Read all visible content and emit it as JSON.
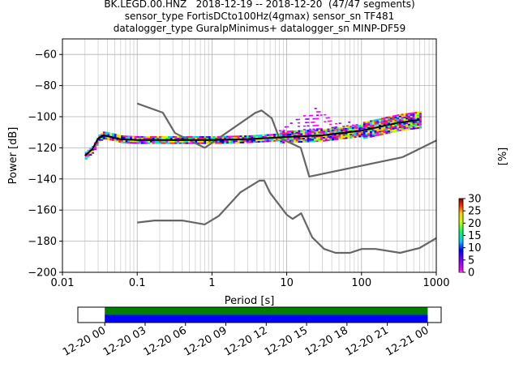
{
  "title_lines": [
    "BK.LEGD.00.HNZ   2018-12-19 -- 2018-12-20  (47/47 segments)",
    "sensor_type FortisDCto100Hz(4gmax) sensor_sn TF481",
    "datalogger_type GuralpMinimus+ datalogger_sn MINP-DF59"
  ],
  "chart_data": {
    "type": "line",
    "xlabel": "Period [s]",
    "ylabel": "Power [dB]",
    "x_scale": "log",
    "xlim": [
      0.01,
      1000
    ],
    "ylim": [
      -200,
      -50
    ],
    "x_ticks": [
      0.01,
      0.1,
      1,
      10,
      100,
      1000
    ],
    "x_tick_labels": [
      "0.01",
      "0.1",
      "1",
      "10",
      "100",
      "1000"
    ],
    "y_ticks": [
      -200,
      -180,
      -160,
      -140,
      -120,
      -100,
      -80,
      -60
    ],
    "y_tick_labels": [
      "−200",
      "−180",
      "−160",
      "−140",
      "−120",
      "−100",
      "−80",
      "−60"
    ],
    "grid": true,
    "series": [
      {
        "role": "noise-model-high",
        "color": "#666666",
        "points": [
          [
            0.1,
            -91.5
          ],
          [
            0.22,
            -97.4
          ],
          [
            0.32,
            -110.5
          ],
          [
            0.8,
            -120
          ],
          [
            3.8,
            -97.5
          ],
          [
            4.6,
            -96
          ],
          [
            6.3,
            -101
          ],
          [
            7.9,
            -113.5
          ],
          [
            15.4,
            -120
          ],
          [
            20,
            -138.5
          ],
          [
            354.8,
            -126
          ],
          [
            10000,
            -91.5
          ]
        ]
      },
      {
        "role": "noise-model-low",
        "color": "#666666",
        "points": [
          [
            0.1,
            -168
          ],
          [
            0.17,
            -166.7
          ],
          [
            0.4,
            -166.7
          ],
          [
            0.8,
            -169.2
          ],
          [
            1.24,
            -163.7
          ],
          [
            2.4,
            -148.6
          ],
          [
            4.3,
            -141.1
          ],
          [
            5,
            -141.1
          ],
          [
            6,
            -149
          ],
          [
            10,
            -163
          ],
          [
            12,
            -165.7
          ],
          [
            15.6,
            -162.1
          ],
          [
            21.9,
            -177.5
          ],
          [
            31.6,
            -185
          ],
          [
            45,
            -187.5
          ],
          [
            70,
            -187.5
          ],
          [
            101,
            -185
          ],
          [
            154,
            -185
          ],
          [
            328,
            -187.5
          ],
          [
            600,
            -184.4
          ],
          [
            1000,
            -178
          ]
        ]
      },
      {
        "role": "mode-psd",
        "color": "#000000",
        "points": [
          [
            0.02,
            -125
          ],
          [
            0.025,
            -121
          ],
          [
            0.03,
            -114
          ],
          [
            0.035,
            -112
          ],
          [
            0.045,
            -113
          ],
          [
            0.06,
            -114.5
          ],
          [
            0.1,
            -115
          ],
          [
            0.3,
            -115
          ],
          [
            1,
            -115
          ],
          [
            3,
            -114.5
          ],
          [
            10,
            -113
          ],
          [
            30,
            -112
          ],
          [
            100,
            -109
          ],
          [
            300,
            -104
          ],
          [
            600,
            -102
          ]
        ]
      },
      {
        "role": "minor-mode-variant",
        "color": "#ff00ff",
        "points": [
          [
            7,
            -110
          ],
          [
            10,
            -105
          ],
          [
            14,
            -101
          ],
          [
            18,
            -97
          ],
          [
            22,
            -94
          ],
          [
            28,
            -97
          ],
          [
            40,
            -100
          ],
          [
            60,
            -103
          ],
          [
            100,
            -104
          ]
        ]
      }
    ],
    "colorbar": {
      "label": "[%]",
      "min": 0,
      "max": 30,
      "ticks": [
        0,
        5,
        10,
        15,
        20,
        25,
        30
      ],
      "tick_labels": [
        "0",
        "5",
        "10",
        "15",
        "20",
        "25",
        "30"
      ]
    },
    "coverage": {
      "start": "2018-12-19 22:00",
      "end": "2018-12-21 01:00",
      "bars": [
        {
          "color": "#008000",
          "from": "2018-12-20 00:00",
          "to": "2018-12-21 00:00"
        },
        {
          "color": "#0000ff",
          "from": "2018-12-20 00:00",
          "to": "2018-12-21 00:00"
        }
      ],
      "tick_labels": [
        "12-20 00",
        "12-20 03",
        "12-20 06",
        "12-20 09",
        "12-20 12",
        "12-20 15",
        "12-20 18",
        "12-20 21",
        "12-21 00"
      ]
    }
  }
}
